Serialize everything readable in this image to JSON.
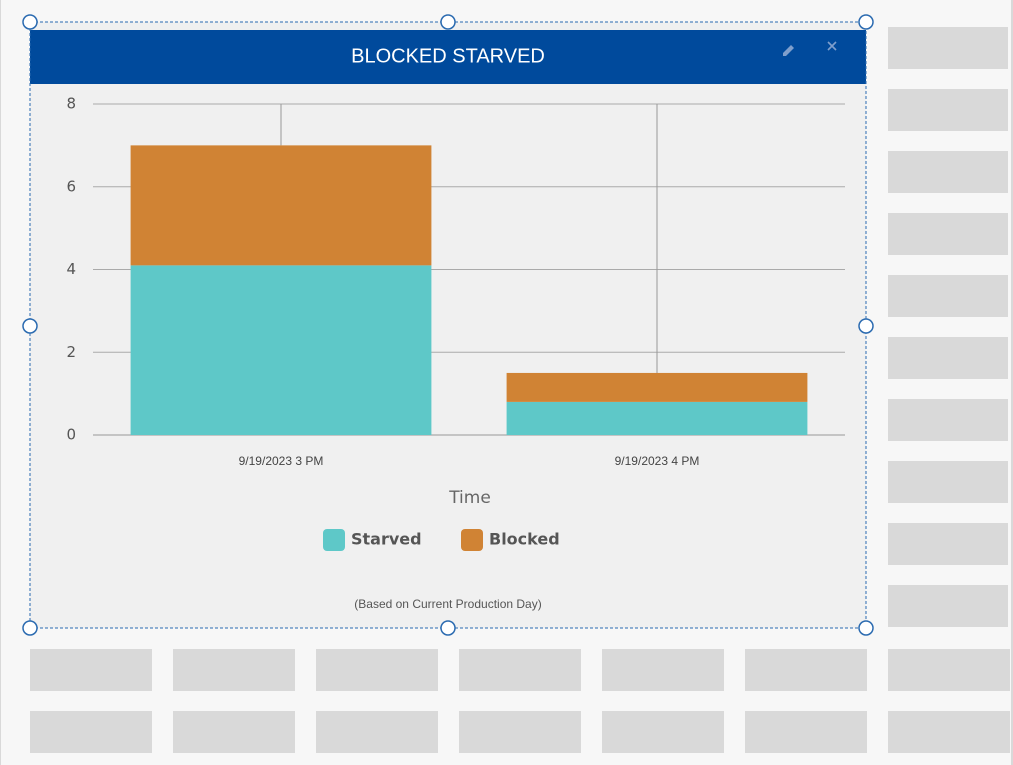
{
  "chart_data": {
    "type": "bar",
    "stacked": true,
    "title": "BLOCKED STARVED",
    "x_label": "Time",
    "note": "(Based on Current Production Day)",
    "categories": [
      "9/19/2023 3 PM",
      "9/19/2023 4 PM"
    ],
    "series": [
      {
        "name": "Starved",
        "color": "#5ec8c8",
        "values": [
          4.1,
          0.8
        ]
      },
      {
        "name": "Blocked",
        "color": "#d08334",
        "values": [
          2.9,
          0.7
        ]
      }
    ],
    "ylim": [
      0,
      8
    ],
    "yticks": [
      0,
      2,
      4,
      6,
      8
    ],
    "grid": true
  }
}
